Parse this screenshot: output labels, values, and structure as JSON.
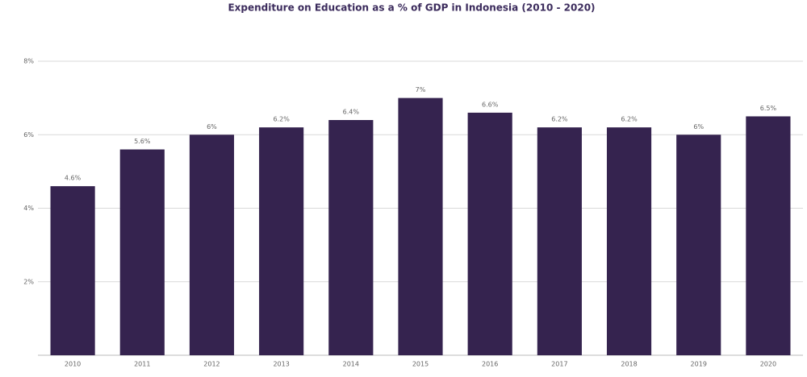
{
  "chart_data": {
    "type": "bar",
    "title": "Expenditure on Education as a % of GDP in Indonesia (2010 - 2020)",
    "categories": [
      "2010",
      "2011",
      "2012",
      "2013",
      "2014",
      "2015",
      "2016",
      "2017",
      "2018",
      "2019",
      "2020"
    ],
    "values": [
      4.6,
      5.6,
      6,
      6.2,
      6.4,
      7,
      6.6,
      6.2,
      6.2,
      6,
      6.5
    ],
    "value_labels": [
      "4.6%",
      "5.6%",
      "6%",
      "6.2%",
      "6.4%",
      "7%",
      "6.6%",
      "6.2%",
      "6.2%",
      "6%",
      "6.5%"
    ],
    "color": "#35234f",
    "ylim": [
      0,
      8
    ],
    "yticks": [
      {
        "value": 2,
        "label": "2%"
      },
      {
        "value": 4,
        "label": "4%"
      },
      {
        "value": 6,
        "label": "6%"
      },
      {
        "value": 8,
        "label": "8%"
      }
    ],
    "grid": true
  }
}
